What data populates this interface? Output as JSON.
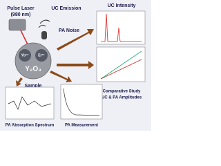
{
  "laser": {
    "title": "Pulse Laser",
    "wavelength": "(980 nm)"
  },
  "emission": "UC Emission",
  "noise": "PA Noise",
  "sample": {
    "ion1": "Yb³⁺",
    "ion2": "Er³⁺",
    "host": "Y₂O₃",
    "label": "Sample"
  },
  "panels": {
    "uc_intensity": "UC Intensity",
    "comparative": [
      "Comparative Study",
      "UC & PA Amplitudes"
    ],
    "absorption": "PA Absorption Spectrum",
    "measurement": "PA Measurement"
  }
}
